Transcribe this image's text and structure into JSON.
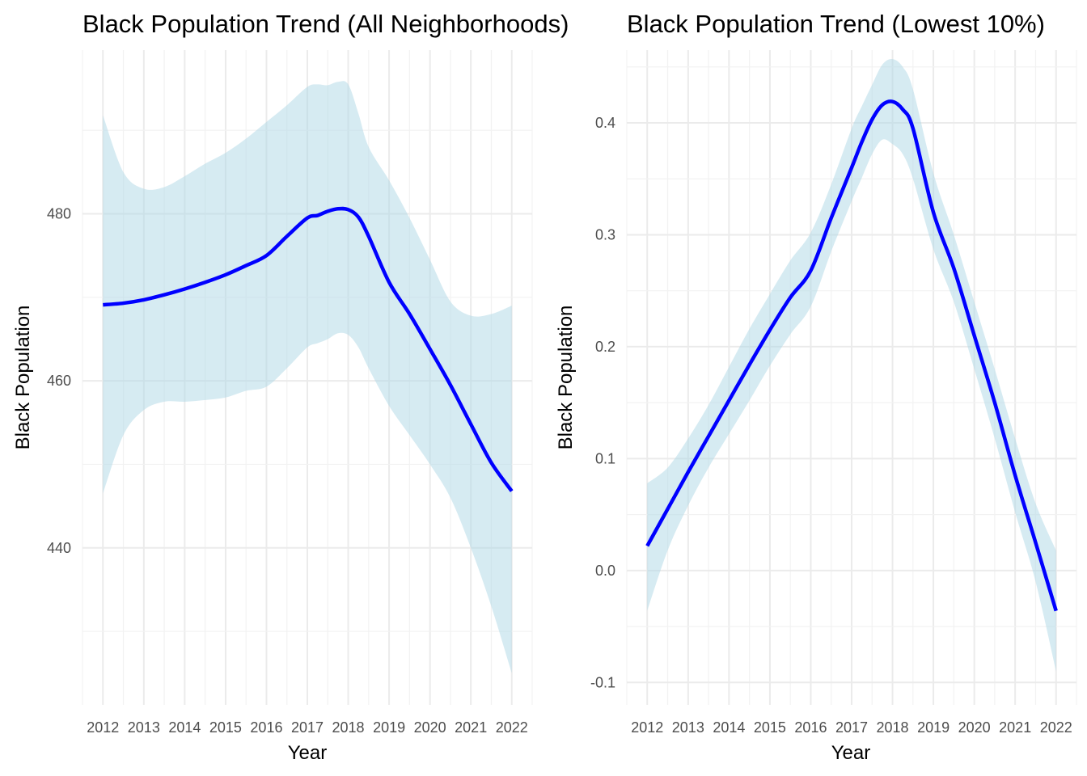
{
  "chart_data": [
    {
      "type": "line",
      "title": "Black Population Trend (All Neighborhoods)",
      "xlabel": "Year",
      "ylabel": "Black Population",
      "x_ticks": [
        "2012",
        "2013",
        "2014",
        "2015",
        "2016",
        "2017",
        "2018",
        "2019",
        "2020",
        "2021",
        "2022"
      ],
      "y_ticks": [
        440,
        460,
        480
      ],
      "xlim": [
        2011.5,
        2022.5
      ],
      "ylim": [
        421.2,
        499.6
      ],
      "grid": true,
      "line_color": "#0000ff",
      "ribbon_color": "#add8e6",
      "series": [
        {
          "x": [
            2012,
            2012.5,
            2013,
            2013.5,
            2014,
            2014.5,
            2015,
            2015.5,
            2016,
            2016.5,
            2017,
            2017.25,
            2017.5,
            2017.75,
            2018,
            2018.25,
            2018.5,
            2019,
            2019.5,
            2020,
            2020.5,
            2021,
            2021.5,
            2022
          ],
          "y": [
            469.1,
            469.3,
            469.7,
            470.3,
            471.0,
            471.8,
            472.7,
            473.8,
            475.0,
            477.3,
            479.5,
            479.8,
            480.3,
            480.6,
            480.5,
            479.6,
            477.3,
            471.8,
            468.0,
            463.8,
            459.5,
            454.8,
            450.2,
            446.8
          ],
          "lower": [
            446.5,
            453.5,
            456.5,
            457.5,
            457.5,
            457.7,
            458.0,
            458.8,
            459.3,
            461.5,
            464.0,
            464.5,
            465.0,
            465.7,
            465.5,
            464.0,
            461.5,
            457.0,
            453.5,
            450.0,
            446.0,
            440.0,
            433.0,
            425.0
          ],
          "upper": [
            491.8,
            485.0,
            483.0,
            483.2,
            484.5,
            486.0,
            487.3,
            489.0,
            491.0,
            493.0,
            495.2,
            495.5,
            495.4,
            495.8,
            495.5,
            492.0,
            488.0,
            484.0,
            479.5,
            474.5,
            469.5,
            467.8,
            468.0,
            469.0
          ]
        }
      ]
    },
    {
      "type": "line",
      "title": "Black Population Trend (Lowest 10%)",
      "xlabel": "Year",
      "ylabel": "Black Population",
      "x_ticks": [
        "2012",
        "2013",
        "2014",
        "2015",
        "2016",
        "2017",
        "2018",
        "2019",
        "2020",
        "2021",
        "2022"
      ],
      "y_ticks": [
        -0.1,
        0.0,
        0.1,
        0.2,
        0.3,
        0.4
      ],
      "y_tick_labels": [
        "-0.1",
        "0.0",
        "0.1",
        "0.2",
        "0.3",
        "0.4"
      ],
      "xlim": [
        2011.5,
        2022.5
      ],
      "ylim": [
        -0.12,
        0.465
      ],
      "grid": true,
      "line_color": "#0000ff",
      "ribbon_color": "#add8e6",
      "series": [
        {
          "x": [
            2012,
            2012.5,
            2013,
            2013.5,
            2014,
            2014.5,
            2015,
            2015.5,
            2016,
            2016.5,
            2017,
            2017.25,
            2017.5,
            2017.75,
            2018,
            2018.25,
            2018.5,
            2019,
            2019.5,
            2020,
            2020.5,
            2021,
            2021.5,
            2022
          ],
          "y": [
            0.022,
            0.055,
            0.088,
            0.12,
            0.152,
            0.184,
            0.215,
            0.244,
            0.268,
            0.315,
            0.36,
            0.383,
            0.403,
            0.416,
            0.419,
            0.412,
            0.395,
            0.32,
            0.27,
            0.21,
            0.15,
            0.085,
            0.025,
            -0.036
          ],
          "lower": [
            -0.036,
            0.018,
            0.058,
            0.092,
            0.122,
            0.152,
            0.183,
            0.211,
            0.236,
            0.285,
            0.33,
            0.351,
            0.372,
            0.385,
            0.381,
            0.372,
            0.35,
            0.287,
            0.24,
            0.18,
            0.118,
            0.052,
            -0.01,
            -0.09
          ],
          "upper": [
            0.078,
            0.092,
            0.118,
            0.148,
            0.182,
            0.216,
            0.247,
            0.277,
            0.302,
            0.345,
            0.395,
            0.415,
            0.434,
            0.452,
            0.457,
            0.45,
            0.43,
            0.355,
            0.3,
            0.24,
            0.18,
            0.118,
            0.06,
            0.018
          ]
        }
      ]
    }
  ]
}
